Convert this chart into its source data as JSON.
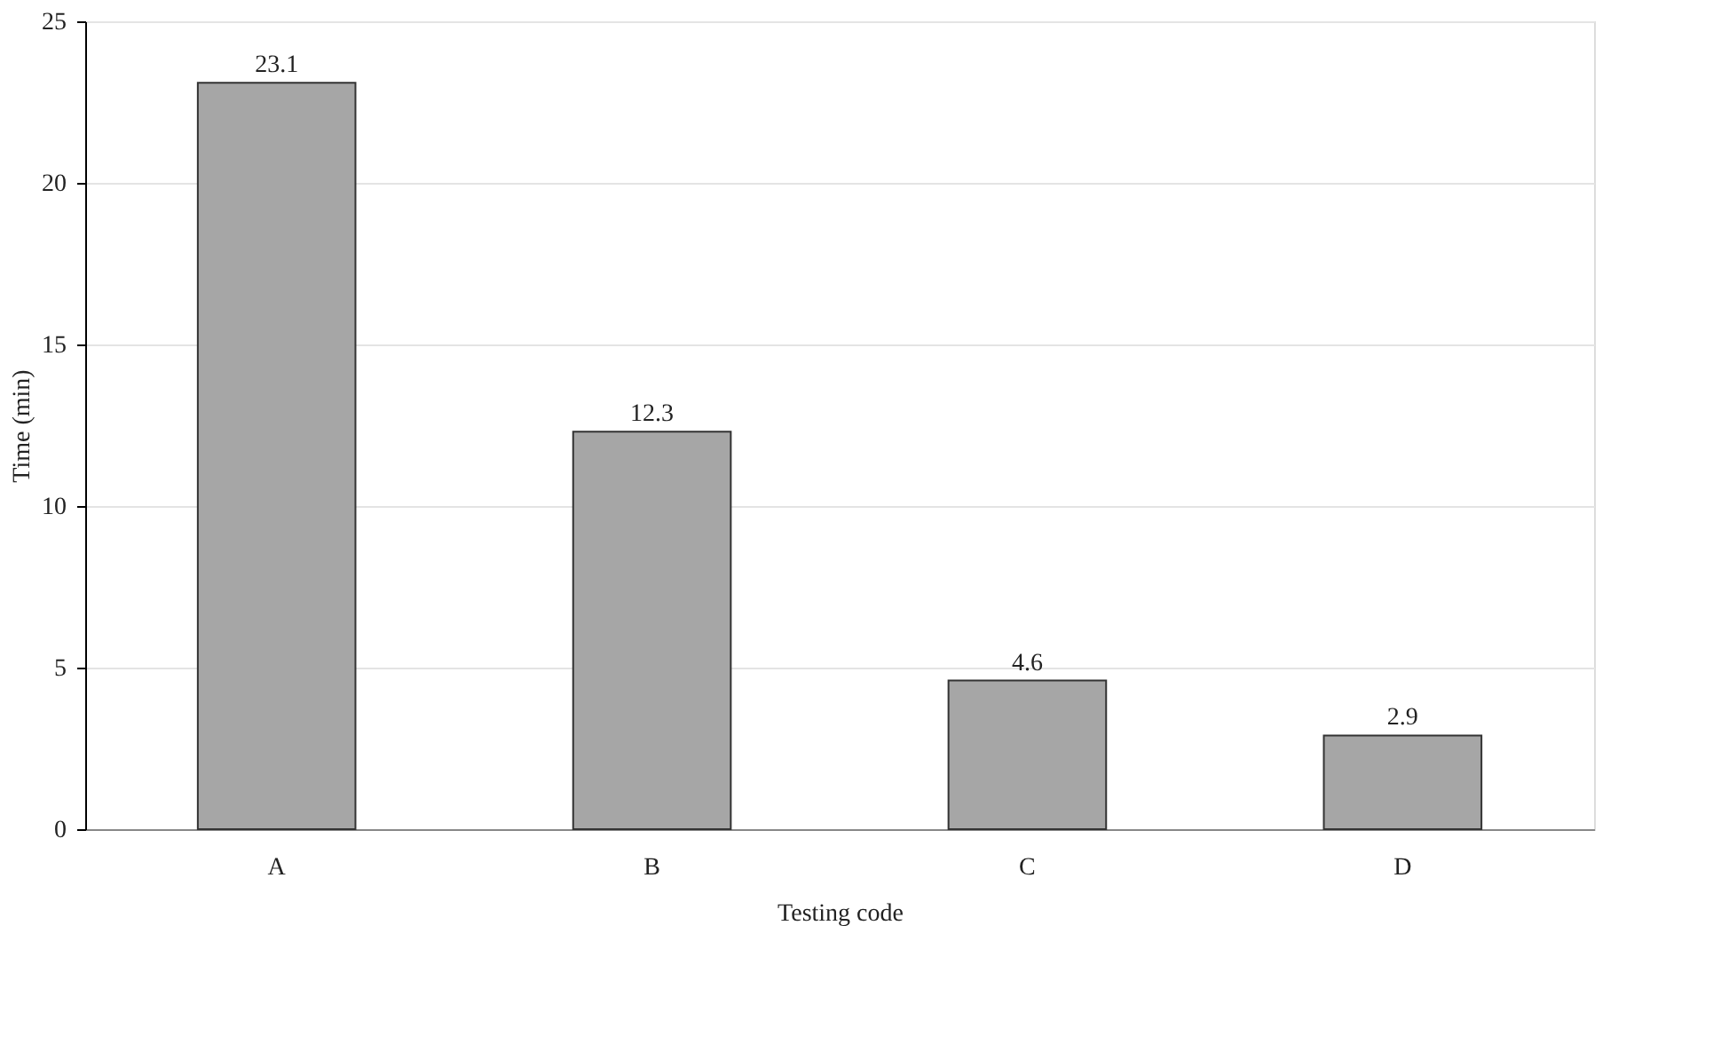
{
  "chart_data": {
    "type": "bar",
    "xlabel": "Testing code",
    "ylabel": "Time (min)",
    "categories": [
      "A",
      "B",
      "C",
      "D"
    ],
    "values": [
      23.1,
      12.3,
      4.6,
      2.9
    ],
    "color": "#a6a6a6",
    "ylim": [
      0,
      25
    ],
    "yticks": [
      0,
      5,
      10,
      15,
      20,
      25
    ],
    "grid": "y",
    "data_labels": true
  }
}
